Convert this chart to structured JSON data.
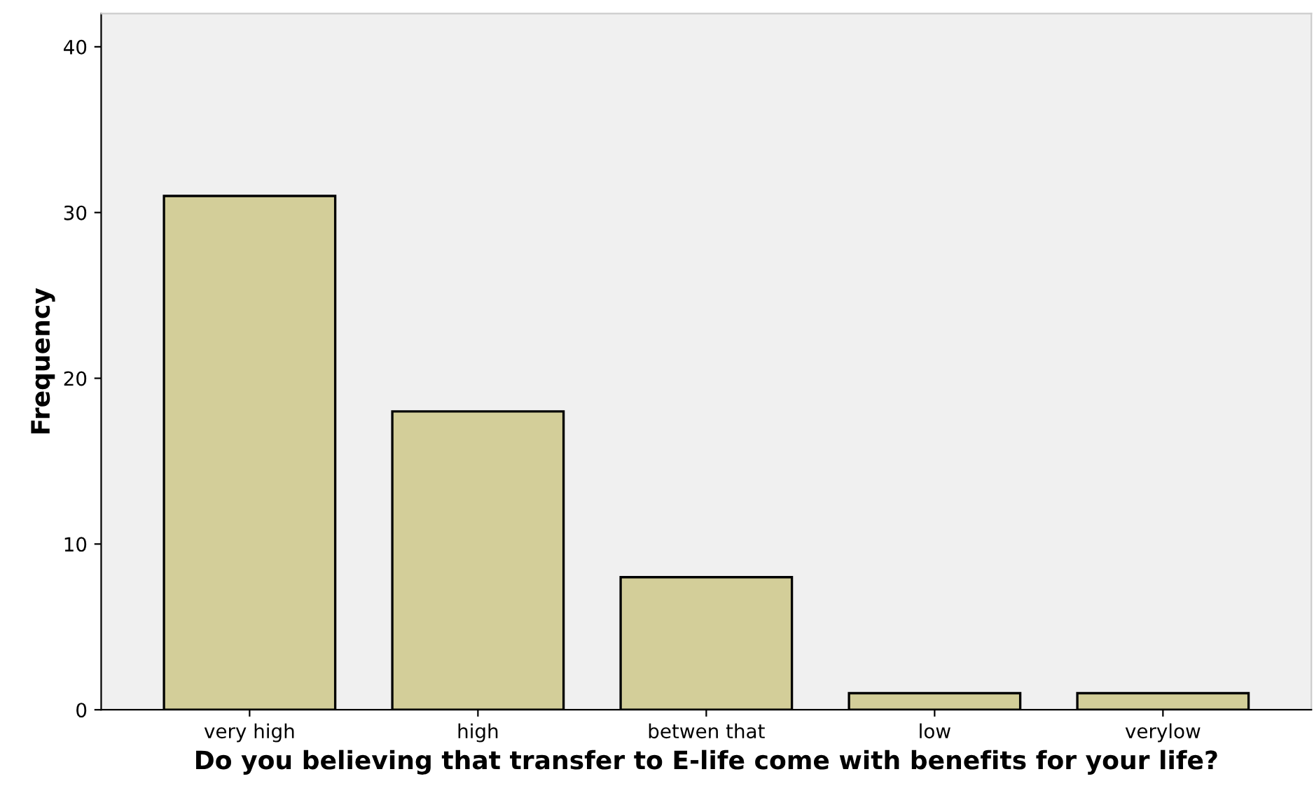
{
  "chart_data": {
    "type": "bar",
    "xlabel": "Do you believing that transfer to E-life come with benefits for your life?",
    "ylabel": "Frequency",
    "categories": [
      "very high",
      "high",
      "betwen that",
      "low",
      "verylow"
    ],
    "values": [
      31,
      18,
      8,
      1,
      1
    ],
    "color": "#d3ce99",
    "ylim": [
      0,
      42
    ],
    "yticks": [
      0,
      10,
      20,
      30,
      40
    ],
    "grid": false
  }
}
